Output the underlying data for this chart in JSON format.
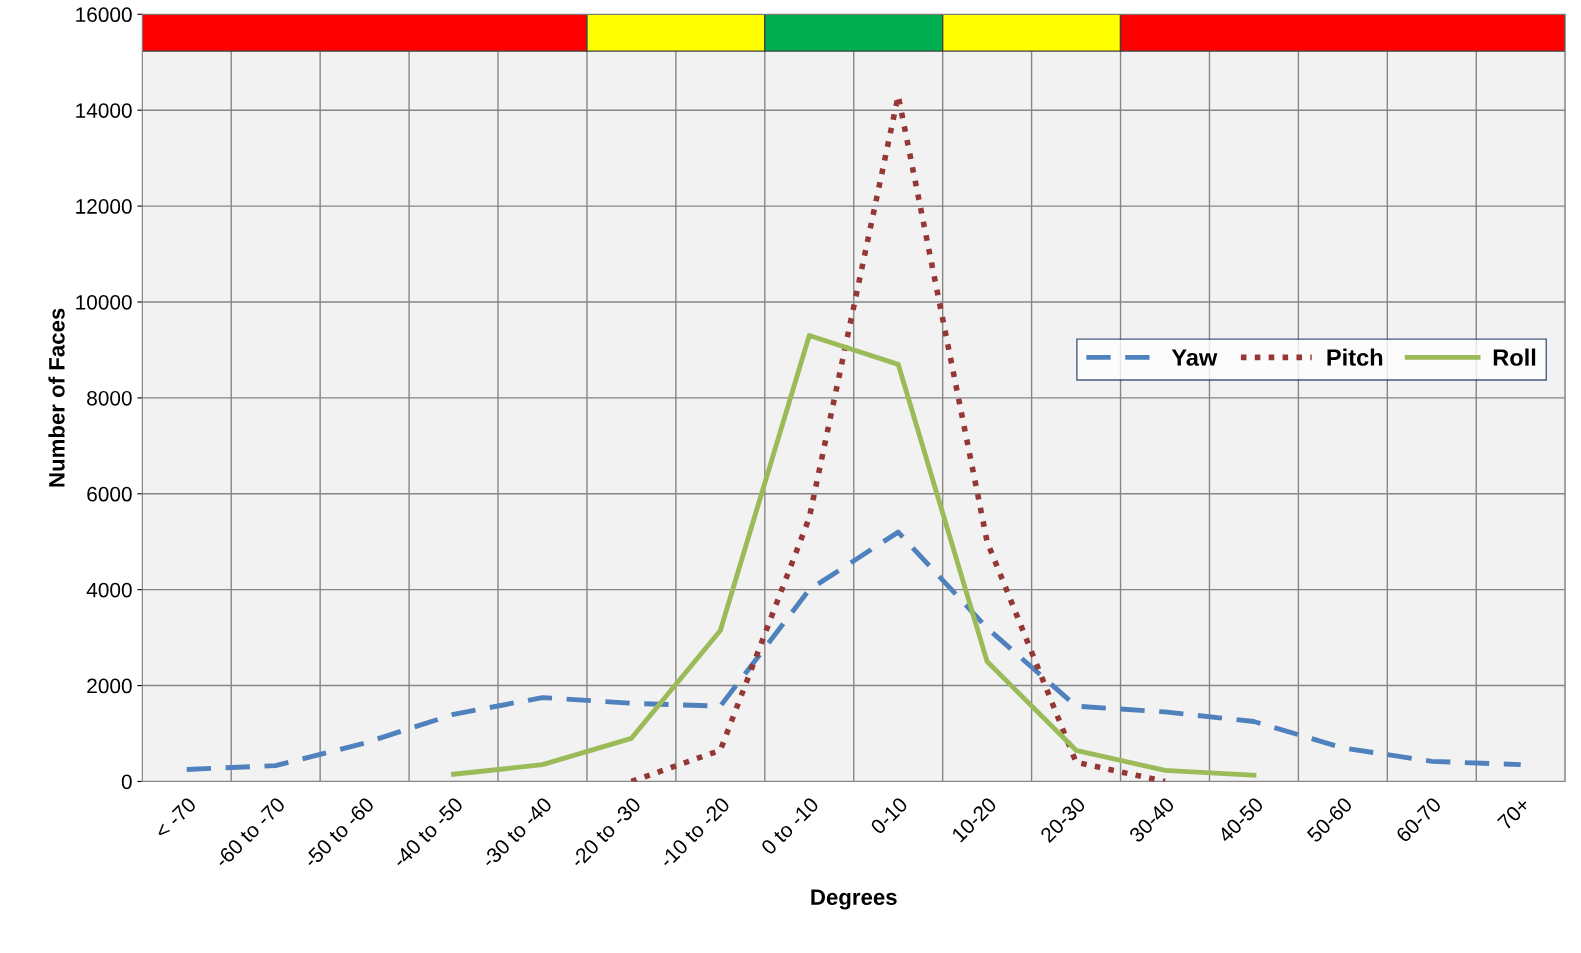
{
  "chart_data": {
    "type": "line",
    "xlabel": "Degrees",
    "ylabel": "Number of Faces",
    "categories": [
      "< -70",
      "-60 to -70",
      "-50 to -60",
      "-40 to -50",
      "-30 to -40",
      "-20 to -30",
      "-10 to -20",
      "0 to -10",
      "0-10",
      "10-20",
      "20-30",
      "30-40",
      "40-50",
      "50-60",
      "60-70",
      "70+"
    ],
    "series": [
      {
        "name": "Yaw",
        "color": "#4f81bd",
        "line_style": "dashed",
        "values": [
          250,
          330,
          800,
          1400,
          1750,
          1630,
          1570,
          4000,
          5200,
          3200,
          1570,
          1450,
          1250,
          700,
          420,
          350
        ]
      },
      {
        "name": "Pitch",
        "color": "#953735",
        "line_style": "dotted",
        "values": [
          null,
          null,
          null,
          null,
          null,
          0,
          650,
          5500,
          14300,
          5000,
          400,
          0,
          null,
          null,
          null,
          null
        ]
      },
      {
        "name": "Roll",
        "color": "#9bbb59",
        "line_style": "solid",
        "values": [
          null,
          null,
          null,
          150,
          350,
          900,
          3150,
          9300,
          8700,
          2500,
          650,
          230,
          130,
          null,
          null,
          null
        ]
      }
    ],
    "ylim": [
      0,
      16000
    ],
    "yticks": [
      0,
      2000,
      4000,
      6000,
      8000,
      10000,
      12000,
      14000,
      16000
    ],
    "grid": true,
    "legend": "right",
    "marker": "none",
    "bands": [
      {
        "axis": "x",
        "from": "< -70",
        "to": "-30 to -40",
        "color": "#ff0000"
      },
      {
        "axis": "x",
        "from": "-20 to -30",
        "to": "-10 to -20",
        "color": "#ffff00"
      },
      {
        "axis": "x",
        "from": "0 to -10",
        "to": "0-10",
        "color": "#00b050"
      },
      {
        "axis": "x",
        "from": "10-20",
        "to": "20-30",
        "color": "#ffff00"
      },
      {
        "axis": "x",
        "from": "30-40",
        "to": "70+",
        "color": "#ff0000"
      }
    ]
  }
}
